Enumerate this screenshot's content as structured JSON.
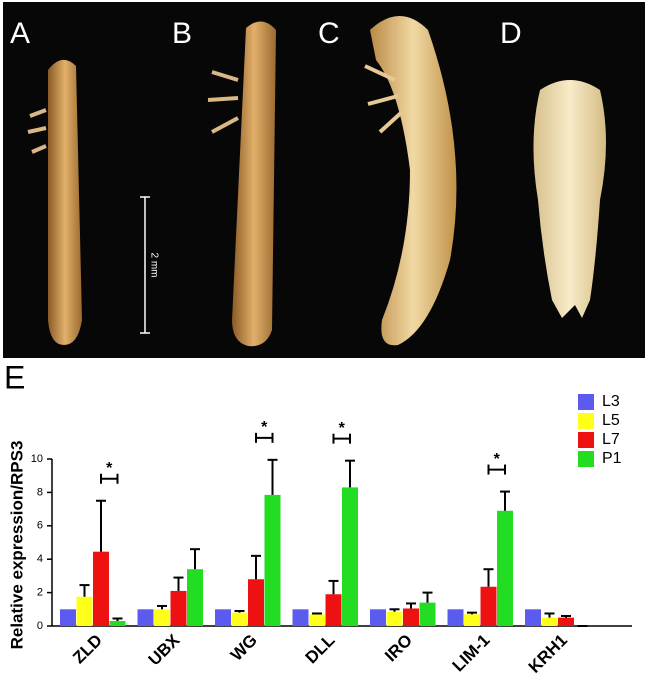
{
  "panels": {
    "labels": [
      "A",
      "B",
      "C",
      "D"
    ],
    "scale_bar": "2 mm"
  },
  "chart_data": {
    "type": "bar",
    "panel_label": "E",
    "y_label": "Relative expression/RPS3",
    "categories": [
      "ZLD",
      "UBX",
      "WG",
      "DLL",
      "IRO",
      "LIM-1",
      "KRH1"
    ],
    "series": [
      {
        "name": "L3",
        "color": "#5b5bf0",
        "values": [
          1,
          1,
          1,
          1,
          1,
          1,
          1
        ]
      },
      {
        "name": "L5",
        "color": "#ffff1a",
        "values": [
          1.75,
          1.0,
          0.8,
          0.7,
          0.85,
          0.7,
          0.5
        ],
        "errors": [
          0.7,
          0.2,
          0.1,
          0.05,
          0.15,
          0.1,
          0.25
        ]
      },
      {
        "name": "L7",
        "color": "#ee1111",
        "values": [
          4.45,
          2.1,
          2.8,
          1.9,
          1.05,
          2.35,
          0.5
        ],
        "errors": [
          3.05,
          0.8,
          1.4,
          0.8,
          0.3,
          1.05,
          0.1
        ]
      },
      {
        "name": "P1",
        "color": "#22dd22",
        "values": [
          0.3,
          3.4,
          7.85,
          8.3,
          1.4,
          6.9,
          0
        ],
        "errors": [
          0.15,
          1.2,
          2.1,
          1.6,
          0.6,
          1.15,
          0
        ]
      }
    ],
    "significance": [
      {
        "category": 0,
        "text": "*"
      },
      {
        "category": 2,
        "text": "*"
      },
      {
        "category": 3,
        "text": "*"
      },
      {
        "category": 5,
        "text": "*"
      }
    ],
    "ylim": [
      0,
      10
    ],
    "yticks": [
      0,
      2,
      4,
      6,
      8,
      10
    ],
    "legend": "top-right"
  }
}
